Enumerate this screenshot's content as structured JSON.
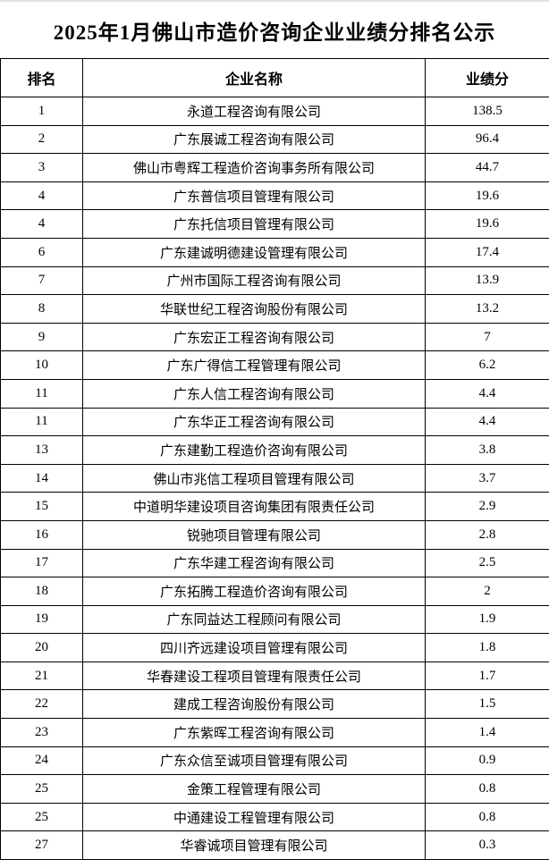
{
  "page": {
    "title": "2025年1月佛山市造价咨询企业业绩分排名公示"
  },
  "table": {
    "columns": [
      "排名",
      "企业名称",
      "业绩分"
    ],
    "rows": [
      {
        "rank": "1",
        "company": "永道工程咨询有限公司",
        "score": "138.5"
      },
      {
        "rank": "2",
        "company": "广东展诚工程咨询有限公司",
        "score": "96.4"
      },
      {
        "rank": "3",
        "company": "佛山市粤辉工程造价咨询事务所有限公司",
        "score": "44.7"
      },
      {
        "rank": "4",
        "company": "广东普信项目管理有限公司",
        "score": "19.6"
      },
      {
        "rank": "4",
        "company": "广东托信项目管理有限公司",
        "score": "19.6"
      },
      {
        "rank": "6",
        "company": "广东建诚明德建设管理有限公司",
        "score": "17.4"
      },
      {
        "rank": "7",
        "company": "广州市国际工程咨询有限公司",
        "score": "13.9"
      },
      {
        "rank": "8",
        "company": "华联世纪工程咨询股份有限公司",
        "score": "13.2"
      },
      {
        "rank": "9",
        "company": "广东宏正工程咨询有限公司",
        "score": "7"
      },
      {
        "rank": "10",
        "company": "广东广得信工程管理有限公司",
        "score": "6.2"
      },
      {
        "rank": "11",
        "company": "广东人信工程咨询有限公司",
        "score": "4.4"
      },
      {
        "rank": "11",
        "company": "广东华正工程咨询有限公司",
        "score": "4.4"
      },
      {
        "rank": "13",
        "company": "广东建勤工程造价咨询有限公司",
        "score": "3.8"
      },
      {
        "rank": "14",
        "company": "佛山市兆信工程项目管理有限公司",
        "score": "3.7"
      },
      {
        "rank": "15",
        "company": "中道明华建设项目咨询集团有限责任公司",
        "score": "2.9"
      },
      {
        "rank": "16",
        "company": "锐驰项目管理有限公司",
        "score": "2.8"
      },
      {
        "rank": "17",
        "company": "广东华建工程咨询有限公司",
        "score": "2.5"
      },
      {
        "rank": "18",
        "company": "广东拓腾工程造价咨询有限公司",
        "score": "2"
      },
      {
        "rank": "19",
        "company": "广东同益达工程顾问有限公司",
        "score": "1.9"
      },
      {
        "rank": "20",
        "company": "四川齐远建设项目管理有限公司",
        "score": "1.8"
      },
      {
        "rank": "21",
        "company": "华春建设工程项目管理有限责任公司",
        "score": "1.7"
      },
      {
        "rank": "22",
        "company": "建成工程咨询股份有限公司",
        "score": "1.5"
      },
      {
        "rank": "23",
        "company": "广东紫晖工程咨询有限公司",
        "score": "1.4"
      },
      {
        "rank": "24",
        "company": "广东众信至诚项目管理有限公司",
        "score": "0.9"
      },
      {
        "rank": "25",
        "company": "金策工程管理有限公司",
        "score": "0.8"
      },
      {
        "rank": "25",
        "company": "中通建设工程管理有限公司",
        "score": "0.8"
      },
      {
        "rank": "27",
        "company": "华睿诚项目管理有限公司",
        "score": "0.3"
      }
    ]
  },
  "colors": {
    "border": "#000000",
    "background": "#ffffff",
    "text": "#000000",
    "top_edge_line": "#e0e0e0"
  }
}
